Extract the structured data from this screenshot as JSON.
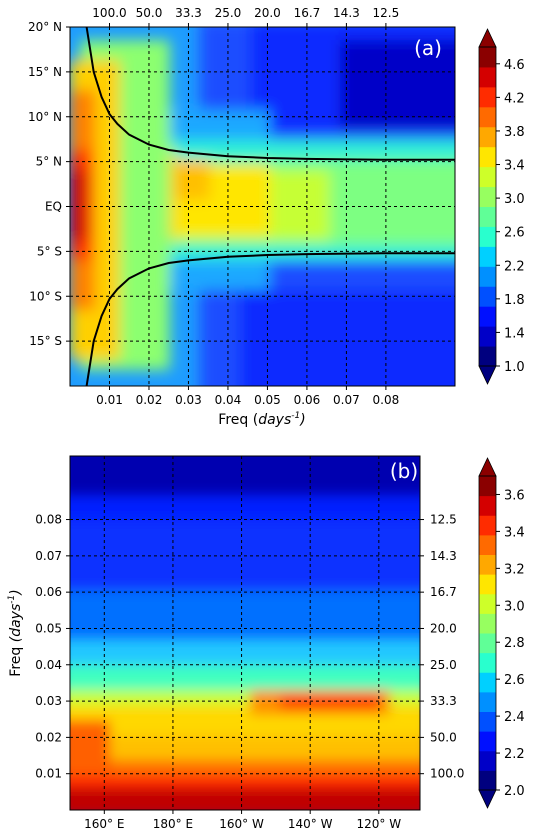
{
  "chart_data": [
    {
      "type": "heatmap",
      "panel_label": "(a)",
      "xlabel": "Freq (days⁻¹)",
      "xlabel_main": "Freq ",
      "xlabel_unit": "days",
      "xlabel_exp": "-1",
      "x_ticks": [
        "0.01",
        "0.02",
        "0.03",
        "0.04",
        "0.05",
        "0.06",
        "0.07",
        "0.08"
      ],
      "x_tick_values": [
        0.01,
        0.02,
        0.03,
        0.04,
        0.05,
        0.06,
        0.07,
        0.08
      ],
      "xlim": [
        0.0,
        0.0975
      ],
      "top_ticks": [
        "100.0",
        "50.0",
        "33.3",
        "25.0",
        "20.0",
        "16.7",
        "14.3",
        "12.5"
      ],
      "y_ticks": [
        "20° N",
        "15° N",
        "10° N",
        "5° N",
        "EQ",
        "5° S",
        "10° S",
        "15° S"
      ],
      "y_tick_values": [
        20,
        15,
        10,
        5,
        0,
        -5,
        -10,
        -15
      ],
      "ylim": [
        -20,
        20
      ],
      "grid": "dashed",
      "colorbar": {
        "ticks": [
          "1.0",
          "1.4",
          "1.8",
          "2.2",
          "2.6",
          "3.0",
          "3.4",
          "3.8",
          "4.2",
          "4.6"
        ],
        "min": 1.0,
        "max": 4.8,
        "step": 0.2,
        "colors": [
          "#00007f",
          "#0000c8",
          "#0010ff",
          "#0050ff",
          "#0090ff",
          "#00d0ff",
          "#29ffce",
          "#60ff97",
          "#97ff60",
          "#ceff29",
          "#ffe600",
          "#ffa800",
          "#ff6a00",
          "#ff2c00",
          "#d40000",
          "#8b0000"
        ]
      },
      "critical_latitude_curves": [
        {
          "name": "north",
          "x": [
            0.0042,
            0.006,
            0.008,
            0.01,
            0.012,
            0.015,
            0.02,
            0.025,
            0.03,
            0.04,
            0.05,
            0.06,
            0.07,
            0.08,
            0.09,
            0.0975
          ],
          "y": [
            20.0,
            15.0,
            12.2,
            10.3,
            9.2,
            8.0,
            6.9,
            6.3,
            6.0,
            5.6,
            5.4,
            5.3,
            5.25,
            5.2,
            5.2,
            5.2
          ]
        },
        {
          "name": "south",
          "x": [
            0.0042,
            0.006,
            0.008,
            0.01,
            0.012,
            0.015,
            0.02,
            0.025,
            0.03,
            0.04,
            0.05,
            0.06,
            0.07,
            0.08,
            0.09,
            0.0975
          ],
          "y": [
            -20.0,
            -15.0,
            -12.2,
            -10.3,
            -9.2,
            -8.0,
            -6.9,
            -6.3,
            -6.0,
            -5.6,
            -5.4,
            -5.3,
            -5.25,
            -5.2,
            -5.2,
            -5.2
          ]
        }
      ]
    },
    {
      "type": "heatmap",
      "panel_label": "(b)",
      "ylabel": "Freq (days⁻¹)",
      "ylabel_main": "Freq ",
      "ylabel_unit": "days",
      "ylabel_exp": "-1",
      "x_ticks": [
        "160° E",
        "180° E",
        "160° W",
        "140° W",
        "120° W"
      ],
      "x_tick_values": [
        160,
        180,
        200,
        220,
        240
      ],
      "xlim": [
        150,
        252
      ],
      "y_ticks": [
        "0.08",
        "0.07",
        "0.06",
        "0.05",
        "0.04",
        "0.03",
        "0.02",
        "0.01"
      ],
      "y_tick_values": [
        0.08,
        0.07,
        0.06,
        0.05,
        0.04,
        0.03,
        0.02,
        0.01
      ],
      "ylim": [
        0.0,
        0.0975
      ],
      "right_ticks": [
        "12.5",
        "14.3",
        "16.7",
        "20.0",
        "25.0",
        "33.3",
        "50.0",
        "100.0"
      ],
      "grid": "dashed",
      "colorbar": {
        "ticks": [
          "2.0",
          "2.2",
          "2.4",
          "2.6",
          "2.8",
          "3.0",
          "3.2",
          "3.4",
          "3.6"
        ],
        "min": 2.0,
        "max": 3.7,
        "step": 0.1,
        "colors": [
          "#00007f",
          "#0000c8",
          "#0010ff",
          "#0050ff",
          "#0090ff",
          "#00d0ff",
          "#29ffce",
          "#60ff97",
          "#97ff60",
          "#ceff29",
          "#ffe600",
          "#ffa800",
          "#ff6a00",
          "#ff2c00",
          "#d40000",
          "#8b0000"
        ]
      }
    }
  ]
}
